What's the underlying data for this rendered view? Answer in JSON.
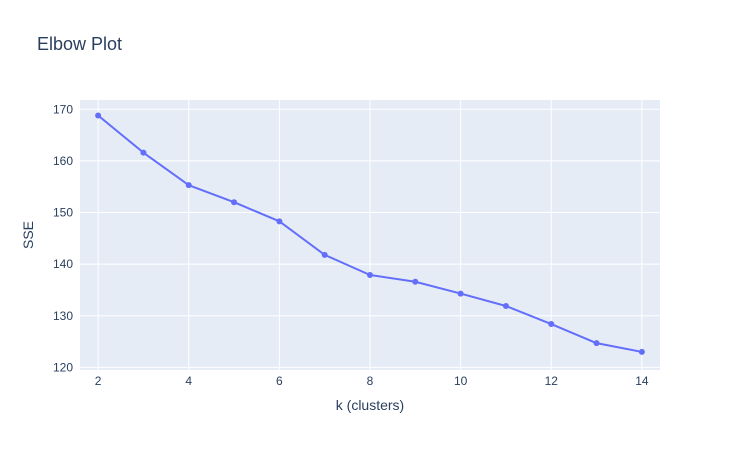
{
  "chart_data": {
    "type": "line",
    "title": "Elbow Plot",
    "xlabel": "k (clusters)",
    "ylabel": "SSE",
    "x": [
      2,
      3,
      4,
      5,
      6,
      7,
      8,
      9,
      10,
      11,
      12,
      13,
      14
    ],
    "series": [
      {
        "values": [
          168.8,
          161.6,
          155.3,
          152.0,
          148.3,
          141.8,
          137.9,
          136.6,
          134.3,
          131.9,
          128.4,
          124.7,
          123.0
        ]
      }
    ],
    "xlim": [
      1.6,
      14.4
    ],
    "ylim": [
      119.5,
      171.8
    ],
    "xticks": [
      2,
      4,
      6,
      8,
      10,
      12,
      14
    ],
    "yticks": [
      120,
      130,
      140,
      150,
      160,
      170
    ],
    "grid": true,
    "mode": "lines+markers",
    "colors": {
      "line": "#636efa",
      "plot_bg": "#e5ecf6",
      "grid": "#ffffff",
      "text": "#2a3f5f"
    }
  }
}
